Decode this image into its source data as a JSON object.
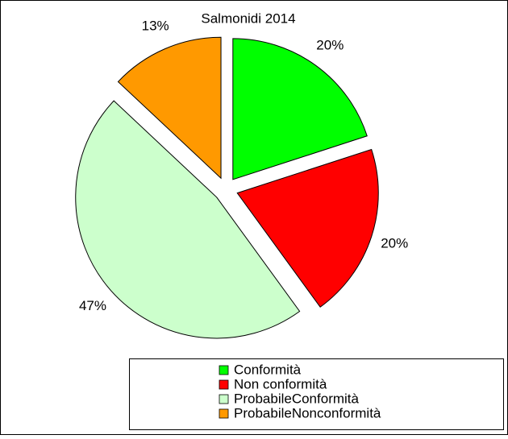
{
  "chart_data": {
    "type": "pie",
    "title": "Salmonidi  2014",
    "categories": [
      "Conformità",
      "Non conformità",
      "ProbabileConformità",
      "ProbabileNonconformità"
    ],
    "values": [
      20,
      20,
      47,
      13
    ],
    "value_labels": [
      "20%",
      "20%",
      "47%",
      "13%"
    ],
    "colors": [
      "#00ff00",
      "#ff0000",
      "#ccffcc",
      "#ff9900"
    ],
    "legend": "bottom"
  }
}
